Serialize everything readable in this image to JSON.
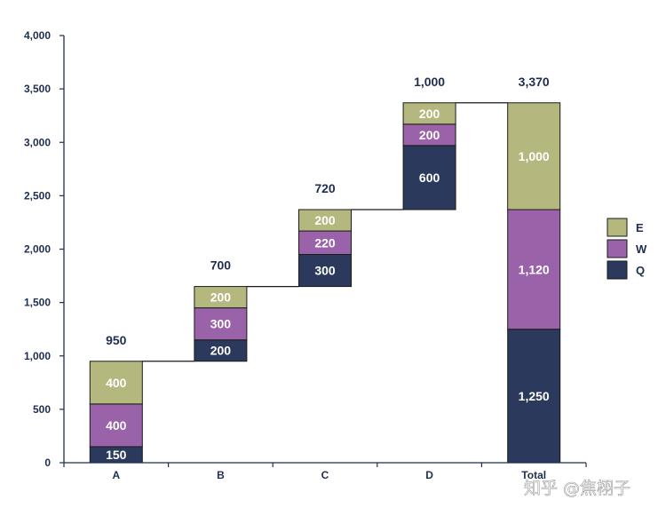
{
  "chart_data": {
    "type": "bar",
    "categories": [
      "A",
      "B",
      "C",
      "D",
      "Total"
    ],
    "series": [
      {
        "name": "Q",
        "values": [
          150,
          200,
          300,
          600,
          1250
        ],
        "color": "#2b3a5c"
      },
      {
        "name": "W",
        "values": [
          400,
          300,
          220,
          200,
          1120
        ],
        "color": "#9a62a8"
      },
      {
        "name": "E",
        "values": [
          400,
          200,
          200,
          200,
          1000
        ],
        "color": "#b5b87e"
      }
    ],
    "base": [
      0,
      950,
      1650,
      2370,
      0
    ],
    "segment_labels": [
      [
        "150",
        "400",
        "400"
      ],
      [
        "200",
        "300",
        "200"
      ],
      [
        "300",
        "220",
        "200"
      ],
      [
        "600",
        "200",
        "200"
      ],
      [
        "1,250",
        "1,120",
        "1,000"
      ]
    ],
    "totals": [
      "950",
      "700",
      "720",
      "1,000",
      "3,370"
    ],
    "ylim": [
      0,
      4000
    ],
    "yticks": [
      0,
      500,
      1000,
      1500,
      2000,
      2500,
      3000,
      3500,
      4000
    ],
    "ytick_labels": [
      "0",
      "500",
      "1,000",
      "1,500",
      "2,000",
      "2,500",
      "3,000",
      "3,500",
      "4,000"
    ],
    "legend": {
      "position": "right",
      "items": [
        "E",
        "W",
        "Q"
      ]
    },
    "grid": false,
    "title": "",
    "xlabel": "",
    "ylabel": "",
    "axis_color": "#1f2d4f"
  },
  "watermark": "知乎 @焦栩子"
}
